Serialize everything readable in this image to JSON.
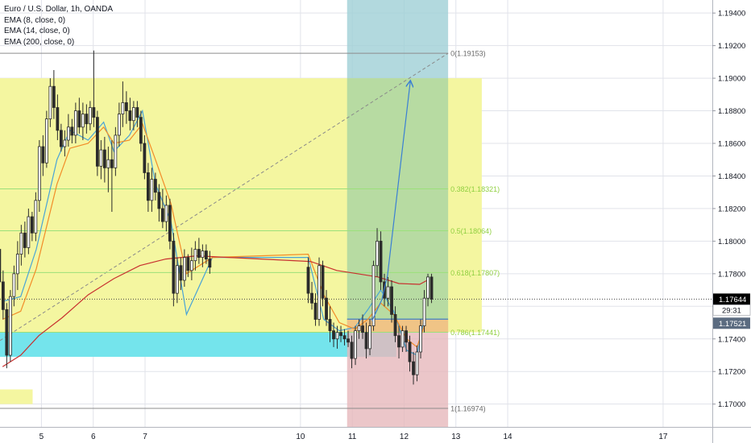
{
  "legend": {
    "symbol": "Euro / U.S. Dollar, 1h, OANDA",
    "ema8": "EMA (8, close, 0)",
    "ema14": "EMA (14, close, 0)",
    "ema200": "EMA (200, close, 0)"
  },
  "price_scale": {
    "last_price": "1.17644",
    "countdown": "29:31",
    "secondary_price": "1.17521"
  },
  "colors": {
    "background": "#ffffff",
    "grid": "#e1e3ea",
    "candle": "#2b2b2b",
    "ema8": "#4aa4d6",
    "ema14": "#f28c28",
    "ema200": "#c8302f",
    "supply_zone": "#f4f6a0",
    "demand_zone": "#74e4ec",
    "profit_zone": "#a7d4a3",
    "loss_zone": "#e6b8bb",
    "forecast": "#3a7fd4",
    "fib_line": "#9be07a",
    "fib_label": "#8fcf3f"
  },
  "chart_data": {
    "type": "candlestick",
    "title": "Euro / U.S. Dollar, 1h, OANDA",
    "x_ticks": [
      "5",
      "6",
      "7",
      "10",
      "11",
      "12",
      "13",
      "14",
      "17"
    ],
    "y_ticks": [
      "1.19400",
      "1.19200",
      "1.19000",
      "1.18800",
      "1.18600",
      "1.18400",
      "1.18200",
      "1.18000",
      "1.17800",
      "1.17600",
      "1.17400",
      "1.17200",
      "1.17000"
    ],
    "ylim": [
      1.1686,
      1.1948
    ],
    "x_range": [
      4.2,
      17.95
    ],
    "grid": true,
    "fib_levels": [
      {
        "label": "0(1.19153)",
        "value": 1.19153
      },
      {
        "label": "0.382(1.18321)",
        "value": 1.18321
      },
      {
        "label": "0.5(1.18064)",
        "value": 1.18064
      },
      {
        "label": "0.618(1.17807)",
        "value": 1.17807
      },
      {
        "label": "0.786(1.17441)",
        "value": 1.17441
      },
      {
        "label": "1(1.16974)",
        "value": 1.16974
      }
    ],
    "zones": {
      "supply": {
        "x": [
          4.2,
          13.5
        ],
        "y": [
          1.17441,
          1.19
        ],
        "color": "#f4f6a0"
      },
      "demand": {
        "x": [
          4.2,
          11.85
        ],
        "y": [
          1.1729,
          1.17441
        ],
        "color": "#74e4ec"
      },
      "small": {
        "x": [
          4.2,
          4.83
        ],
        "y": [
          1.17,
          1.1709
        ],
        "color": "#f4f6a0"
      },
      "position_profit_top": {
        "x": [
          10.9,
          12.85
        ],
        "y": [
          1.19,
          1.1948
        ],
        "color": "#9fcfd6"
      },
      "position_profit": {
        "x": [
          10.9,
          12.85
        ],
        "y": [
          1.17521,
          1.19
        ],
        "color": "#a7d4a3"
      },
      "position_loss": {
        "x": [
          10.9,
          12.85
        ],
        "y": [
          1.1686,
          1.17521
        ],
        "color": "#e6b8bb"
      },
      "entry_orange": {
        "x": [
          10.9,
          12.85
        ],
        "y": [
          1.17441,
          1.17521
        ],
        "color": "#f1c47a"
      }
    },
    "forecast_path": [
      [
        11.38,
        1.1751
      ],
      [
        11.57,
        1.1764
      ],
      [
        11.68,
        1.1779
      ],
      [
        12.12,
        1.1898
      ]
    ],
    "trend_line": [
      [
        4.2,
        1.1739
      ],
      [
        12.85,
        1.19153
      ]
    ],
    "horizontal_lines": [
      {
        "value": 1.17644,
        "style": "dotted"
      },
      {
        "value": 1.17521,
        "style": "solid-blue",
        "x": [
          10.9,
          12.85
        ]
      }
    ],
    "series": [
      {
        "name": "EMA (8, close, 0)",
        "points": [
          [
            4.25,
            1.1763
          ],
          [
            4.6,
            1.1766
          ],
          [
            4.9,
            1.1795
          ],
          [
            5.3,
            1.185
          ],
          [
            5.55,
            1.1868
          ],
          [
            5.9,
            1.1862
          ],
          [
            6.2,
            1.1873
          ],
          [
            6.4,
            1.1855
          ],
          [
            6.7,
            1.1865
          ],
          [
            6.95,
            1.188
          ],
          [
            7.2,
            1.1835
          ],
          [
            7.5,
            1.1812
          ],
          [
            7.8,
            1.1755
          ],
          [
            8.3,
            1.179
          ],
          [
            10.15,
            1.179
          ],
          [
            10.45,
            1.1752
          ],
          [
            10.75,
            1.1745
          ],
          [
            11.05,
            1.1747
          ],
          [
            11.3,
            1.1758
          ],
          [
            11.55,
            1.177
          ],
          [
            11.8,
            1.1757
          ],
          [
            12.05,
            1.1733
          ],
          [
            12.25,
            1.173
          ],
          [
            12.4,
            1.1754
          ]
        ]
      },
      {
        "name": "EMA (14, close, 0)",
        "points": [
          [
            4.25,
            1.1752
          ],
          [
            4.6,
            1.1757
          ],
          [
            4.9,
            1.1783
          ],
          [
            5.3,
            1.1835
          ],
          [
            5.55,
            1.1857
          ],
          [
            5.9,
            1.186
          ],
          [
            6.2,
            1.187
          ],
          [
            6.4,
            1.186
          ],
          [
            6.7,
            1.1862
          ],
          [
            6.95,
            1.1872
          ],
          [
            7.2,
            1.185
          ],
          [
            7.5,
            1.1823
          ],
          [
            7.8,
            1.178
          ],
          [
            8.3,
            1.179
          ],
          [
            10.15,
            1.1792
          ],
          [
            10.45,
            1.1767
          ],
          [
            10.75,
            1.175
          ],
          [
            11.05,
            1.1746
          ],
          [
            11.3,
            1.1752
          ],
          [
            11.55,
            1.1762
          ],
          [
            11.8,
            1.1755
          ],
          [
            12.05,
            1.174
          ],
          [
            12.25,
            1.1735
          ],
          [
            12.4,
            1.1749
          ]
        ]
      },
      {
        "name": "EMA (200, close, 0)",
        "points": [
          [
            4.25,
            1.1723
          ],
          [
            4.6,
            1.173
          ],
          [
            4.95,
            1.1742
          ],
          [
            5.4,
            1.1753
          ],
          [
            5.9,
            1.1767
          ],
          [
            6.4,
            1.1777
          ],
          [
            6.9,
            1.1785
          ],
          [
            7.4,
            1.1789
          ],
          [
            8.0,
            1.1791
          ],
          [
            10.2,
            1.17875
          ],
          [
            10.7,
            1.1782
          ],
          [
            11.1,
            1.178
          ],
          [
            11.5,
            1.1778
          ],
          [
            11.9,
            1.1774
          ],
          [
            12.3,
            1.17735
          ],
          [
            12.45,
            1.1776
          ]
        ]
      }
    ],
    "candles": [
      {
        "t": 4.05,
        "o": 1.1778,
        "h": 1.179,
        "l": 1.176,
        "c": 1.1768
      },
      {
        "t": 4.12,
        "o": 1.1768,
        "h": 1.18,
        "l": 1.176,
        "c": 1.1795
      },
      {
        "t": 4.19,
        "o": 1.1795,
        "h": 1.1798,
        "l": 1.177,
        "c": 1.1775
      },
      {
        "t": 4.26,
        "o": 1.1775,
        "h": 1.1782,
        "l": 1.1752,
        "c": 1.1758
      },
      {
        "t": 4.33,
        "o": 1.1758,
        "h": 1.1762,
        "l": 1.1722,
        "c": 1.173
      },
      {
        "t": 4.4,
        "o": 1.173,
        "h": 1.177,
        "l": 1.1726,
        "c": 1.1766
      },
      {
        "t": 4.47,
        "o": 1.1766,
        "h": 1.1785,
        "l": 1.176,
        "c": 1.178
      },
      {
        "t": 4.54,
        "o": 1.178,
        "h": 1.18,
        "l": 1.177,
        "c": 1.1792
      },
      {
        "t": 4.61,
        "o": 1.1792,
        "h": 1.181,
        "l": 1.1785,
        "c": 1.1805
      },
      {
        "t": 4.68,
        "o": 1.1805,
        "h": 1.1812,
        "l": 1.179,
        "c": 1.1796
      },
      {
        "t": 4.75,
        "o": 1.1796,
        "h": 1.182,
        "l": 1.1792,
        "c": 1.1815
      },
      {
        "t": 4.82,
        "o": 1.1815,
        "h": 1.1818,
        "l": 1.18,
        "c": 1.1805
      },
      {
        "t": 4.89,
        "o": 1.1805,
        "h": 1.183,
        "l": 1.18,
        "c": 1.1825
      },
      {
        "t": 4.96,
        "o": 1.1825,
        "h": 1.1862,
        "l": 1.1818,
        "c": 1.1858
      },
      {
        "t": 5.03,
        "o": 1.1858,
        "h": 1.1865,
        "l": 1.184,
        "c": 1.1848
      },
      {
        "t": 5.1,
        "o": 1.1848,
        "h": 1.188,
        "l": 1.1845,
        "c": 1.1875
      },
      {
        "t": 5.17,
        "o": 1.1875,
        "h": 1.19,
        "l": 1.187,
        "c": 1.1895
      },
      {
        "t": 5.24,
        "o": 1.1895,
        "h": 1.1905,
        "l": 1.1875,
        "c": 1.1882
      },
      {
        "t": 5.31,
        "o": 1.1882,
        "h": 1.189,
        "l": 1.1862,
        "c": 1.1868
      },
      {
        "t": 5.38,
        "o": 1.1868,
        "h": 1.1872,
        "l": 1.1855,
        "c": 1.1858
      },
      {
        "t": 5.45,
        "o": 1.1858,
        "h": 1.1868,
        "l": 1.1852,
        "c": 1.1862
      },
      {
        "t": 5.52,
        "o": 1.1862,
        "h": 1.1878,
        "l": 1.1858,
        "c": 1.187
      },
      {
        "t": 5.59,
        "o": 1.187,
        "h": 1.1875,
        "l": 1.186,
        "c": 1.1865
      },
      {
        "t": 5.66,
        "o": 1.1865,
        "h": 1.1885,
        "l": 1.186,
        "c": 1.188
      },
      {
        "t": 5.73,
        "o": 1.188,
        "h": 1.1888,
        "l": 1.1866,
        "c": 1.187
      },
      {
        "t": 5.8,
        "o": 1.187,
        "h": 1.1885,
        "l": 1.1862,
        "c": 1.1878
      },
      {
        "t": 5.87,
        "o": 1.1878,
        "h": 1.1884,
        "l": 1.1866,
        "c": 1.1872
      },
      {
        "t": 5.94,
        "o": 1.1872,
        "h": 1.1886,
        "l": 1.1868,
        "c": 1.1882
      },
      {
        "t": 6.01,
        "o": 1.1882,
        "h": 1.1917,
        "l": 1.187,
        "c": 1.1876
      },
      {
        "t": 6.08,
        "o": 1.1876,
        "h": 1.188,
        "l": 1.184,
        "c": 1.1846
      },
      {
        "t": 6.15,
        "o": 1.1846,
        "h": 1.1862,
        "l": 1.1838,
        "c": 1.1856
      },
      {
        "t": 6.22,
        "o": 1.1856,
        "h": 1.1864,
        "l": 1.1836,
        "c": 1.1845
      },
      {
        "t": 6.29,
        "o": 1.1845,
        "h": 1.1858,
        "l": 1.183,
        "c": 1.185
      },
      {
        "t": 6.36,
        "o": 1.185,
        "h": 1.1862,
        "l": 1.1818,
        "c": 1.1845
      },
      {
        "t": 6.43,
        "o": 1.1845,
        "h": 1.187,
        "l": 1.184,
        "c": 1.1865
      },
      {
        "t": 6.5,
        "o": 1.1865,
        "h": 1.1885,
        "l": 1.1858,
        "c": 1.1878
      },
      {
        "t": 6.57,
        "o": 1.1878,
        "h": 1.1898,
        "l": 1.187,
        "c": 1.1885
      },
      {
        "t": 6.64,
        "o": 1.1885,
        "h": 1.1892,
        "l": 1.1872,
        "c": 1.188
      },
      {
        "t": 6.71,
        "o": 1.188,
        "h": 1.1888,
        "l": 1.1868,
        "c": 1.1874
      },
      {
        "t": 6.78,
        "o": 1.1874,
        "h": 1.1886,
        "l": 1.1868,
        "c": 1.1882
      },
      {
        "t": 6.85,
        "o": 1.1882,
        "h": 1.1886,
        "l": 1.187,
        "c": 1.1876
      },
      {
        "t": 6.92,
        "o": 1.1876,
        "h": 1.188,
        "l": 1.1855,
        "c": 1.186
      },
      {
        "t": 6.99,
        "o": 1.186,
        "h": 1.1865,
        "l": 1.1838,
        "c": 1.1842
      },
      {
        "t": 7.06,
        "o": 1.1842,
        "h": 1.1848,
        "l": 1.1818,
        "c": 1.1825
      },
      {
        "t": 7.13,
        "o": 1.1825,
        "h": 1.1845,
        "l": 1.1818,
        "c": 1.1838
      },
      {
        "t": 7.2,
        "o": 1.1838,
        "h": 1.1842,
        "l": 1.1825,
        "c": 1.183
      },
      {
        "t": 7.27,
        "o": 1.183,
        "h": 1.1835,
        "l": 1.1812,
        "c": 1.182
      },
      {
        "t": 7.34,
        "o": 1.182,
        "h": 1.1832,
        "l": 1.1808,
        "c": 1.1812
      },
      {
        "t": 7.41,
        "o": 1.1812,
        "h": 1.1828,
        "l": 1.1806,
        "c": 1.1822
      },
      {
        "t": 7.48,
        "o": 1.1822,
        "h": 1.1826,
        "l": 1.1795,
        "c": 1.18
      },
      {
        "t": 7.55,
        "o": 1.18,
        "h": 1.1805,
        "l": 1.176,
        "c": 1.1768
      },
      {
        "t": 7.62,
        "o": 1.1768,
        "h": 1.179,
        "l": 1.1762,
        "c": 1.1785
      },
      {
        "t": 7.69,
        "o": 1.1785,
        "h": 1.179,
        "l": 1.177,
        "c": 1.1776
      },
      {
        "t": 7.76,
        "o": 1.1776,
        "h": 1.1795,
        "l": 1.1772,
        "c": 1.179
      },
      {
        "t": 7.83,
        "o": 1.179,
        "h": 1.1792,
        "l": 1.1778,
        "c": 1.1782
      },
      {
        "t": 7.9,
        "o": 1.1782,
        "h": 1.1796,
        "l": 1.1776,
        "c": 1.1788
      },
      {
        "t": 7.97,
        "o": 1.1788,
        "h": 1.18,
        "l": 1.1782,
        "c": 1.1795
      },
      {
        "t": 8.04,
        "o": 1.1795,
        "h": 1.1802,
        "l": 1.1786,
        "c": 1.179
      },
      {
        "t": 8.11,
        "o": 1.179,
        "h": 1.1798,
        "l": 1.1784,
        "c": 1.1794
      },
      {
        "t": 8.18,
        "o": 1.1794,
        "h": 1.1798,
        "l": 1.1786,
        "c": 1.1789
      },
      {
        "t": 8.25,
        "o": 1.1789,
        "h": 1.1794,
        "l": 1.178,
        "c": 1.1784
      },
      {
        "t": 10.15,
        "o": 1.1784,
        "h": 1.179,
        "l": 1.1762,
        "c": 1.1768
      },
      {
        "t": 10.22,
        "o": 1.1768,
        "h": 1.1775,
        "l": 1.1758,
        "c": 1.1762
      },
      {
        "t": 10.29,
        "o": 1.1762,
        "h": 1.1768,
        "l": 1.1748,
        "c": 1.1752
      },
      {
        "t": 10.36,
        "o": 1.1752,
        "h": 1.179,
        "l": 1.1748,
        "c": 1.1785
      },
      {
        "t": 10.43,
        "o": 1.1785,
        "h": 1.1788,
        "l": 1.176,
        "c": 1.1765
      },
      {
        "t": 10.5,
        "o": 1.1765,
        "h": 1.177,
        "l": 1.1748,
        "c": 1.1752
      },
      {
        "t": 10.57,
        "o": 1.1752,
        "h": 1.176,
        "l": 1.1738,
        "c": 1.1745
      },
      {
        "t": 10.64,
        "o": 1.1745,
        "h": 1.175,
        "l": 1.1735,
        "c": 1.174
      },
      {
        "t": 10.71,
        "o": 1.174,
        "h": 1.1748,
        "l": 1.1734,
        "c": 1.1744
      },
      {
        "t": 10.78,
        "o": 1.1744,
        "h": 1.1748,
        "l": 1.1738,
        "c": 1.1742
      },
      {
        "t": 10.85,
        "o": 1.1742,
        "h": 1.1746,
        "l": 1.1736,
        "c": 1.174
      },
      {
        "t": 10.92,
        "o": 1.174,
        "h": 1.1745,
        "l": 1.1735,
        "c": 1.1738
      },
      {
        "t": 10.99,
        "o": 1.1738,
        "h": 1.1742,
        "l": 1.1722,
        "c": 1.1728
      },
      {
        "t": 11.06,
        "o": 1.1728,
        "h": 1.1748,
        "l": 1.1724,
        "c": 1.1745
      },
      {
        "t": 11.13,
        "o": 1.1745,
        "h": 1.1752,
        "l": 1.174,
        "c": 1.1748
      },
      {
        "t": 11.2,
        "o": 1.1748,
        "h": 1.1755,
        "l": 1.174,
        "c": 1.1744
      },
      {
        "t": 11.27,
        "o": 1.1744,
        "h": 1.175,
        "l": 1.1728,
        "c": 1.1734
      },
      {
        "t": 11.34,
        "o": 1.1734,
        "h": 1.1752,
        "l": 1.173,
        "c": 1.1748
      },
      {
        "t": 11.41,
        "o": 1.1748,
        "h": 1.1788,
        "l": 1.1745,
        "c": 1.1785
      },
      {
        "t": 11.48,
        "o": 1.1785,
        "h": 1.1808,
        "l": 1.1778,
        "c": 1.18
      },
      {
        "t": 11.55,
        "o": 1.18,
        "h": 1.1806,
        "l": 1.177,
        "c": 1.1775
      },
      {
        "t": 11.62,
        "o": 1.1775,
        "h": 1.178,
        "l": 1.176,
        "c": 1.1765
      },
      {
        "t": 11.69,
        "o": 1.1765,
        "h": 1.1778,
        "l": 1.176,
        "c": 1.1772
      },
      {
        "t": 11.76,
        "o": 1.1772,
        "h": 1.1776,
        "l": 1.175,
        "c": 1.1755
      },
      {
        "t": 11.83,
        "o": 1.1755,
        "h": 1.176,
        "l": 1.1738,
        "c": 1.1742
      },
      {
        "t": 11.9,
        "o": 1.1742,
        "h": 1.1748,
        "l": 1.1728,
        "c": 1.1735
      },
      {
        "t": 11.97,
        "o": 1.1735,
        "h": 1.1748,
        "l": 1.1732,
        "c": 1.1745
      },
      {
        "t": 12.04,
        "o": 1.1745,
        "h": 1.1748,
        "l": 1.1732,
        "c": 1.1738
      },
      {
        "t": 12.11,
        "o": 1.1738,
        "h": 1.1742,
        "l": 1.172,
        "c": 1.1726
      },
      {
        "t": 12.18,
        "o": 1.1726,
        "h": 1.1732,
        "l": 1.1712,
        "c": 1.1718
      },
      {
        "t": 12.25,
        "o": 1.1718,
        "h": 1.1736,
        "l": 1.1714,
        "c": 1.1732
      },
      {
        "t": 12.32,
        "o": 1.1732,
        "h": 1.1752,
        "l": 1.1728,
        "c": 1.1748
      },
      {
        "t": 12.39,
        "o": 1.1748,
        "h": 1.177,
        "l": 1.1744,
        "c": 1.1765
      },
      {
        "t": 12.46,
        "o": 1.1765,
        "h": 1.178,
        "l": 1.176,
        "c": 1.1778
      },
      {
        "t": 12.53,
        "o": 1.1778,
        "h": 1.178,
        "l": 1.1762,
        "c": 1.17644
      }
    ]
  }
}
